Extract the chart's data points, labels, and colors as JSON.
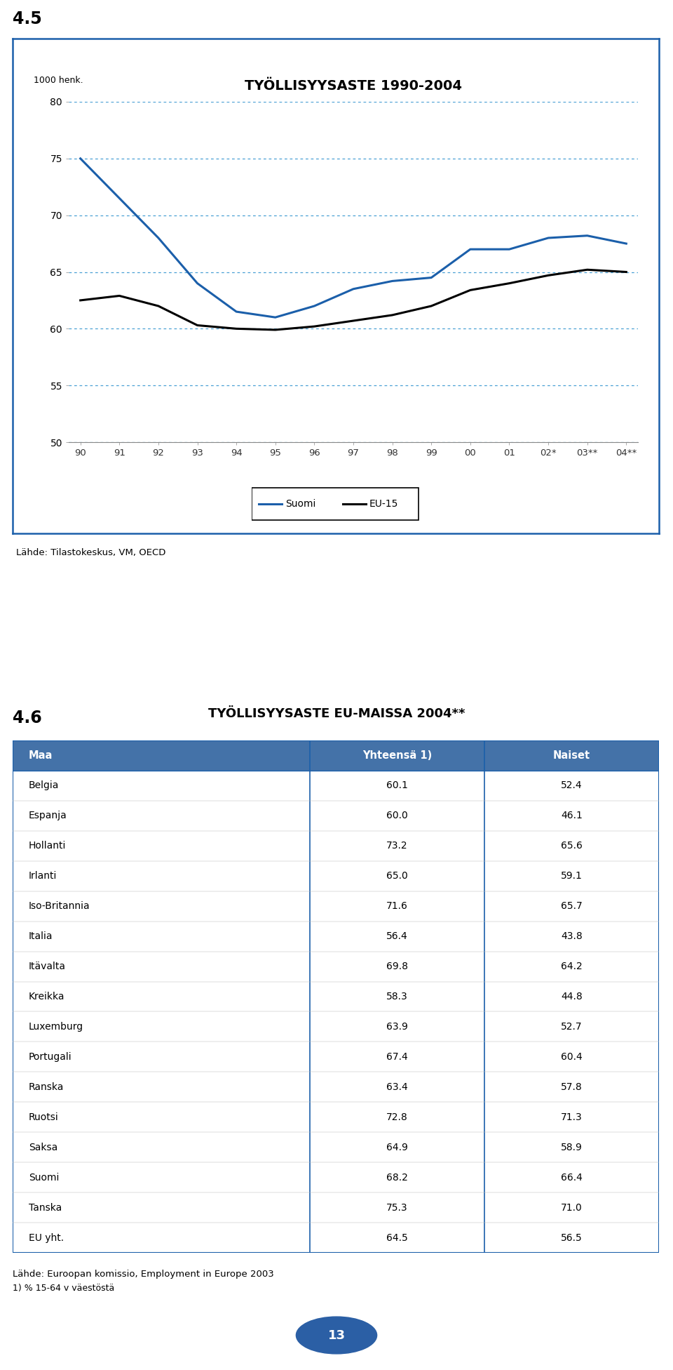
{
  "chart_title": "TYÖLLISYYSASTE 1990-2004",
  "section_label_1": "4.5",
  "section_label_2": "4.6",
  "ylabel_note": "1000 henk.",
  "xlabel_ticks": [
    "90",
    "91",
    "92",
    "93",
    "94",
    "95",
    "96",
    "97",
    "98",
    "99",
    "00",
    "01",
    "02*",
    "03**",
    "04**"
  ],
  "ylim": [
    50,
    80
  ],
  "yticks": [
    50,
    55,
    60,
    65,
    70,
    75,
    80
  ],
  "suomi_data": [
    75.0,
    71.5,
    68.0,
    64.0,
    61.5,
    61.0,
    62.0,
    63.5,
    64.2,
    64.5,
    67.0,
    67.0,
    68.0,
    68.2,
    67.5
  ],
  "eu15_data": [
    62.5,
    62.9,
    62.0,
    60.3,
    60.0,
    59.9,
    60.2,
    60.7,
    61.2,
    62.0,
    63.4,
    64.0,
    64.7,
    65.2,
    65.0
  ],
  "suomi_color": "#1B5FAA",
  "eu15_color": "#000000",
  "legend_suomi": "Suomi",
  "legend_eu15": "EU-15",
  "source_chart": "Lähde: Tilastokeskus, VM, OECD",
  "chart_border_color": "#1B5FAA",
  "grid_color": "#4AA0D5",
  "table_title": "TYÖLLISYYSASTE EU-MAISSA 2004**",
  "table_data": [
    [
      "Belgia",
      "60.1",
      "52.4"
    ],
    [
      "Espanja",
      "60.0",
      "46.1"
    ],
    [
      "Hollanti",
      "73.2",
      "65.6"
    ],
    [
      "Irlanti",
      "65.0",
      "59.1"
    ],
    [
      "Iso-Britannia",
      "71.6",
      "65.7"
    ],
    [
      "Italia",
      "56.4",
      "43.8"
    ],
    [
      "Itävalta",
      "69.8",
      "64.2"
    ],
    [
      "Kreikka",
      "58.3",
      "44.8"
    ],
    [
      "Luxemburg",
      "63.9",
      "52.7"
    ],
    [
      "Portugali",
      "67.4",
      "60.4"
    ],
    [
      "Ranska",
      "63.4",
      "57.8"
    ],
    [
      "Ruotsi",
      "72.8",
      "71.3"
    ],
    [
      "Saksa",
      "64.9",
      "58.9"
    ],
    [
      "Suomi",
      "68.2",
      "66.4"
    ],
    [
      "Tanska",
      "75.3",
      "71.0"
    ],
    [
      "EU yht.",
      "64.5",
      "56.5"
    ]
  ],
  "source_table": "Lähde: Euroopan komissio, Employment in Europe 2003",
  "footnote_table": "1) % 15-64 v väestöstä",
  "page_number": "13",
  "page_circle_color": "#2B5FA5",
  "header_bg_color": "#4472A8",
  "header_text_color": "#FFFFFF",
  "table_border_color": "#1B5FAA"
}
